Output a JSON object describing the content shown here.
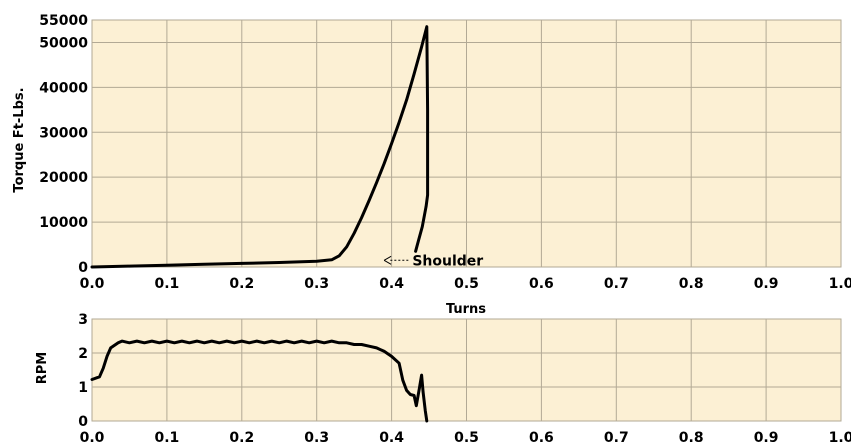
{
  "chart_data": [
    {
      "type": "line",
      "ylabel": "Torque Ft-Lbs.",
      "xlabel": "Turns",
      "xlim": [
        0.0,
        1.0
      ],
      "ylim": [
        0,
        55000
      ],
      "x_ticks": [
        "0.0",
        "0.1",
        "0.2",
        "0.3",
        "0.4",
        "0.5",
        "0.6",
        "0.7",
        "0.8",
        "0.9",
        "1.0"
      ],
      "y_ticks": [
        {
          "value": 0,
          "label": "0"
        },
        {
          "value": 10000,
          "label": "10000"
        },
        {
          "value": 20000,
          "label": "20000"
        },
        {
          "value": 30000,
          "label": "30000"
        },
        {
          "value": 40000,
          "label": "40000"
        },
        {
          "value": 50000,
          "label": "50000"
        },
        {
          "value": 55000,
          "label": "55000"
        }
      ],
      "grid": true,
      "background_color": "#fcf0d4",
      "grid_color": "#b2a995",
      "line_color": "#000000",
      "annotation": {
        "text": "Shoulder",
        "x": 0.425,
        "y": 2200
      },
      "series": [
        {
          "points": [
            [
              0.0,
              0
            ],
            [
              0.05,
              200
            ],
            [
              0.1,
              400
            ],
            [
              0.15,
              600
            ],
            [
              0.2,
              800
            ],
            [
              0.25,
              1000
            ],
            [
              0.3,
              1300
            ],
            [
              0.32,
              1600
            ],
            [
              0.33,
              2500
            ],
            [
              0.34,
              4500
            ],
            [
              0.35,
              7500
            ],
            [
              0.36,
              11000
            ],
            [
              0.37,
              14800
            ],
            [
              0.38,
              18800
            ],
            [
              0.39,
              23000
            ],
            [
              0.4,
              27500
            ],
            [
              0.41,
              32200
            ],
            [
              0.42,
              37200
            ],
            [
              0.43,
              43000
            ],
            [
              0.44,
              49000
            ],
            [
              0.447,
              53500
            ],
            [
              0.448,
              35000
            ],
            [
              0.448,
              16000
            ],
            [
              0.446,
              13500
            ],
            [
              0.441,
              9000
            ],
            [
              0.436,
              6000
            ],
            [
              0.432,
              3500
            ]
          ]
        }
      ]
    },
    {
      "type": "line",
      "ylabel": "RPM",
      "xlim": [
        0.0,
        1.0
      ],
      "ylim": [
        0,
        3
      ],
      "x_ticks": [
        "0.0",
        "0.1",
        "0.2",
        "0.3",
        "0.4",
        "0.5",
        "0.6",
        "0.7",
        "0.8",
        "0.9",
        "1.0"
      ],
      "y_ticks": [
        {
          "value": 0,
          "label": "0"
        },
        {
          "value": 1,
          "label": "1"
        },
        {
          "value": 2,
          "label": "2"
        },
        {
          "value": 3,
          "label": "3"
        }
      ],
      "grid": true,
      "background_color": "#fcf0d4",
      "grid_color": "#b2a995",
      "line_color": "#000000",
      "series": [
        {
          "points": [
            [
              0.0,
              1.22
            ],
            [
              0.01,
              1.3
            ],
            [
              0.015,
              1.55
            ],
            [
              0.02,
              1.9
            ],
            [
              0.025,
              2.15
            ],
            [
              0.035,
              2.3
            ],
            [
              0.04,
              2.35
            ],
            [
              0.05,
              2.3
            ],
            [
              0.06,
              2.35
            ],
            [
              0.07,
              2.3
            ],
            [
              0.08,
              2.35
            ],
            [
              0.09,
              2.3
            ],
            [
              0.1,
              2.35
            ],
            [
              0.11,
              2.3
            ],
            [
              0.12,
              2.35
            ],
            [
              0.13,
              2.3
            ],
            [
              0.14,
              2.35
            ],
            [
              0.15,
              2.3
            ],
            [
              0.16,
              2.35
            ],
            [
              0.17,
              2.3
            ],
            [
              0.18,
              2.35
            ],
            [
              0.19,
              2.3
            ],
            [
              0.2,
              2.35
            ],
            [
              0.21,
              2.3
            ],
            [
              0.22,
              2.35
            ],
            [
              0.23,
              2.3
            ],
            [
              0.24,
              2.35
            ],
            [
              0.25,
              2.3
            ],
            [
              0.26,
              2.35
            ],
            [
              0.27,
              2.3
            ],
            [
              0.28,
              2.35
            ],
            [
              0.29,
              2.3
            ],
            [
              0.3,
              2.35
            ],
            [
              0.31,
              2.3
            ],
            [
              0.32,
              2.35
            ],
            [
              0.33,
              2.3
            ],
            [
              0.34,
              2.3
            ],
            [
              0.35,
              2.25
            ],
            [
              0.36,
              2.25
            ],
            [
              0.37,
              2.2
            ],
            [
              0.38,
              2.15
            ],
            [
              0.39,
              2.05
            ],
            [
              0.4,
              1.9
            ],
            [
              0.41,
              1.7
            ],
            [
              0.415,
              1.2
            ],
            [
              0.42,
              0.9
            ],
            [
              0.425,
              0.78
            ],
            [
              0.43,
              0.75
            ],
            [
              0.433,
              0.45
            ],
            [
              0.437,
              0.95
            ],
            [
              0.44,
              1.35
            ],
            [
              0.442,
              0.85
            ],
            [
              0.445,
              0.3
            ],
            [
              0.447,
              0.0
            ]
          ]
        }
      ]
    }
  ]
}
